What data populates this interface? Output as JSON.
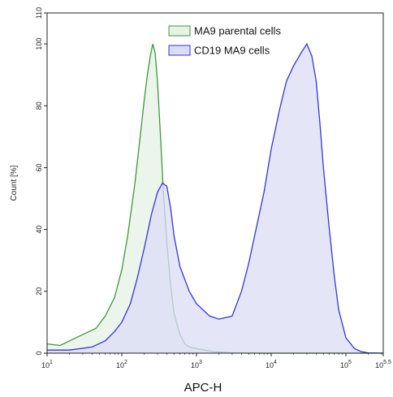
{
  "chart_data": {
    "type": "area",
    "xlabel": "APC-H",
    "ylabel": "Count [%]",
    "x_scale": "log10",
    "xlim": [
      10,
      316228
    ],
    "ylim": [
      0,
      110
    ],
    "x_ticks": [
      {
        "value": 10,
        "base": "10",
        "exp": "1"
      },
      {
        "value": 100,
        "base": "10",
        "exp": "2"
      },
      {
        "value": 1000,
        "base": "10",
        "exp": "3"
      },
      {
        "value": 10000,
        "base": "10",
        "exp": "4"
      },
      {
        "value": 100000,
        "base": "10",
        "exp": "5"
      },
      {
        "value": 316228,
        "base": "10",
        "exp": "5.5"
      }
    ],
    "y_ticks": [
      "0",
      "20",
      "40",
      "60",
      "80",
      "100",
      "110"
    ],
    "legend_position": "top-center",
    "series": [
      {
        "name": "MA9 parental cells",
        "color": "#3a9a3a",
        "fill": "#e6f2e4",
        "x": [
          10,
          15,
          20,
          30,
          45,
          60,
          80,
          100,
          120,
          150,
          180,
          200,
          220,
          240,
          260,
          280,
          300,
          330,
          360,
          400,
          450,
          500,
          600,
          700,
          800,
          1000,
          1300,
          1700,
          2200,
          3000,
          5000,
          10000,
          316228
        ],
        "y": [
          3,
          2.5,
          4,
          6,
          8,
          12,
          18,
          27,
          38,
          55,
          72,
          82,
          90,
          96,
          100,
          97,
          88,
          70,
          52,
          36,
          22,
          13,
          6,
          3,
          2,
          1.5,
          1,
          0.5,
          0.3,
          0.1,
          0,
          0,
          0
        ]
      },
      {
        "name": "CD19 MA9 cells",
        "color": "#3636d6",
        "fill": "#dcdcf6",
        "x": [
          10,
          20,
          40,
          60,
          80,
          100,
          130,
          160,
          200,
          250,
          300,
          350,
          400,
          450,
          500,
          600,
          800,
          1000,
          1500,
          2000,
          3000,
          4000,
          5000,
          6000,
          8000,
          10000,
          13000,
          16000,
          20000,
          25000,
          30000,
          35000,
          40000,
          45000,
          50000,
          60000,
          70000,
          80000,
          100000,
          130000,
          160000,
          200000,
          316228
        ],
        "y": [
          1,
          1,
          2,
          4,
          7,
          10,
          16,
          24,
          34,
          45,
          52,
          55,
          54,
          47,
          38,
          28,
          20,
          16,
          12,
          11,
          12,
          20,
          29,
          38,
          52,
          66,
          79,
          88,
          93,
          97,
          100,
          96,
          88,
          74,
          60,
          40,
          25,
          14,
          5,
          1.5,
          0.5,
          0.1,
          0
        ]
      }
    ]
  }
}
